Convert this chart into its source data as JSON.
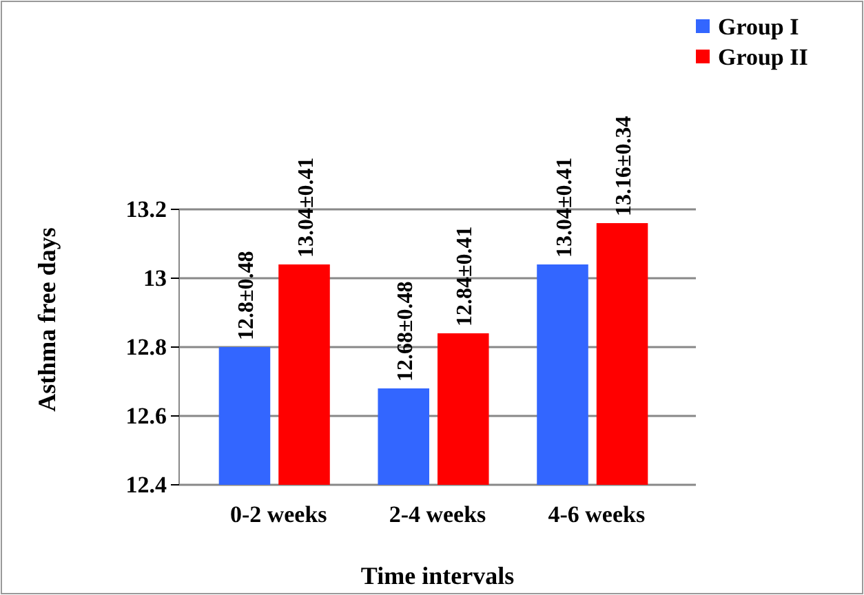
{
  "chart_data": {
    "type": "bar",
    "xlabel": "Time intervals",
    "ylabel": "Asthma free days",
    "categories": [
      "0-2 weeks",
      "2-4 weeks",
      "4-6 weeks"
    ],
    "series": [
      {
        "name": "Group I",
        "color": "#3366ff",
        "values": [
          12.8,
          12.68,
          13.04
        ],
        "value_labels": [
          "12.8±0.48",
          "12.68±0.48",
          "13.04±0.41"
        ]
      },
      {
        "name": "Group II",
        "color": "#ff0000",
        "values": [
          13.04,
          12.84,
          13.16
        ],
        "value_labels": [
          "13.04±0.41",
          "12.84±0.41",
          "13.16±0.34"
        ]
      }
    ],
    "ylim": [
      12.4,
      13.2
    ],
    "yticks": [
      12.4,
      12.6,
      12.8,
      13,
      13.2
    ],
    "grid": "y",
    "legend": "top right"
  }
}
